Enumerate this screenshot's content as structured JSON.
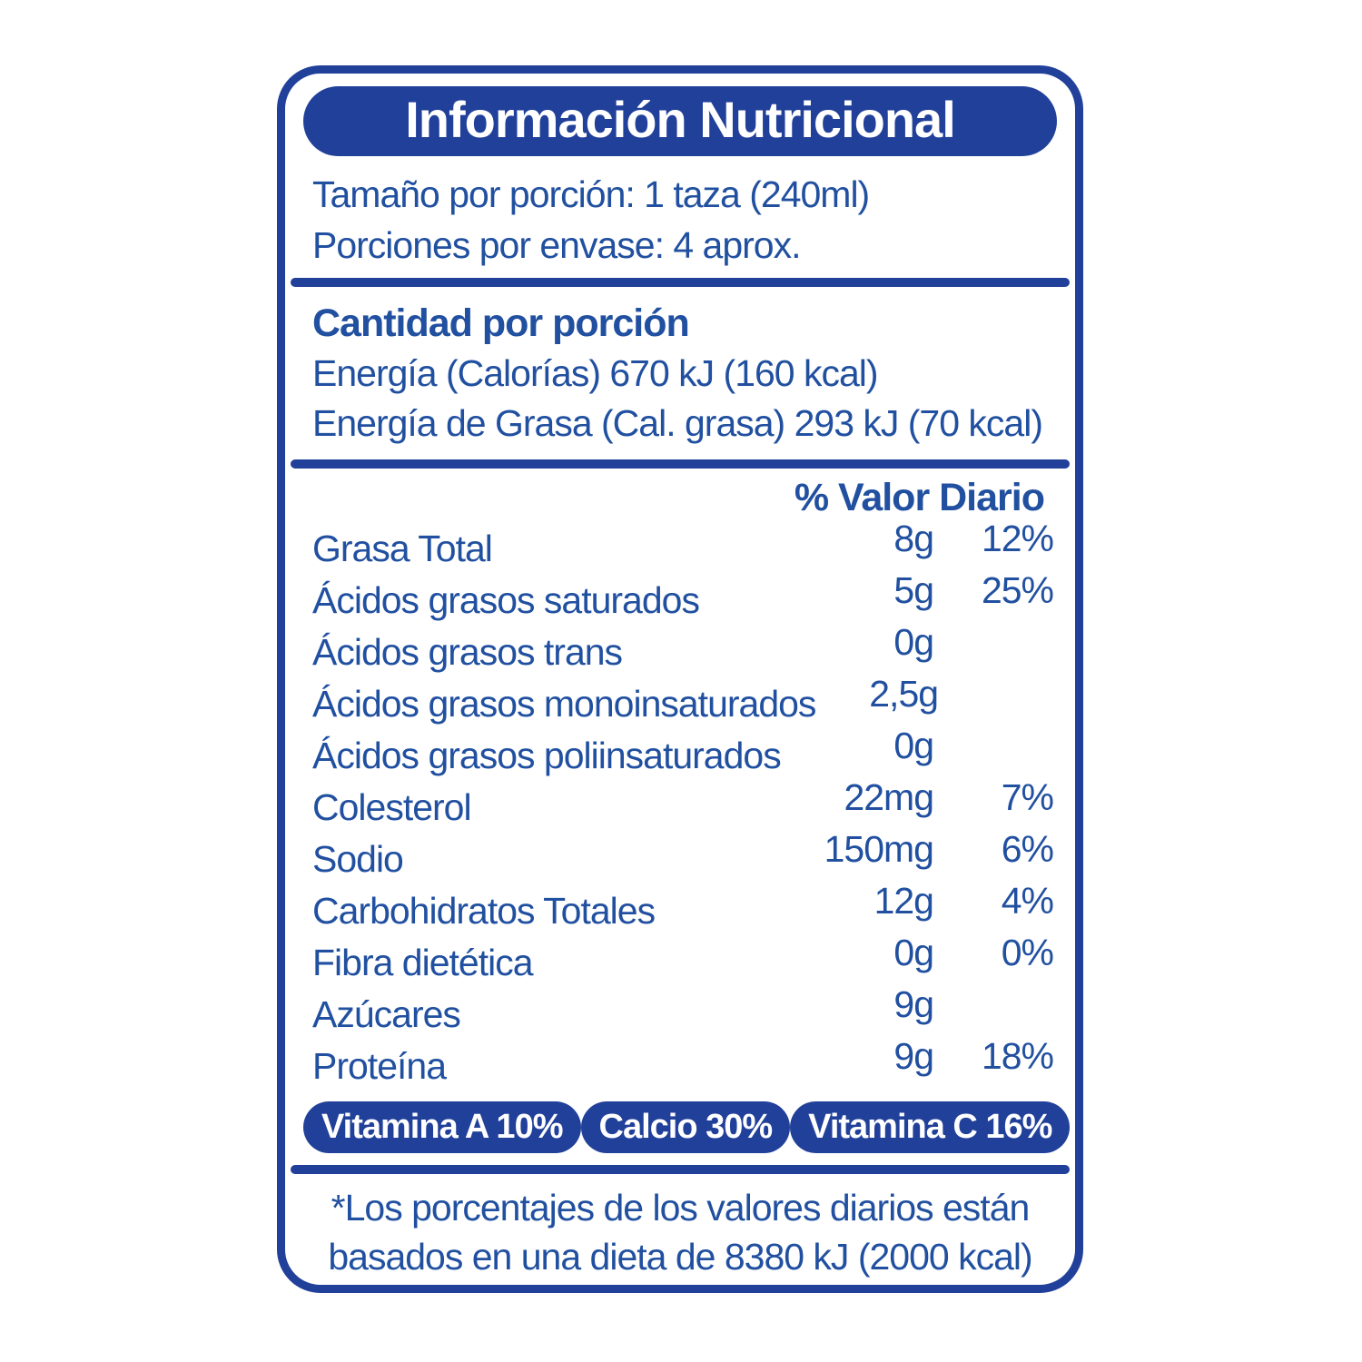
{
  "label": {
    "title": "Información Nutricional",
    "serving": {
      "size": "Tamaño por porción: 1 taza (240ml)",
      "per_container": "Porciones por envase: 4 aprox."
    },
    "amount_section": {
      "heading": "Cantidad por porción",
      "energy": "Energía (Calorías) 670 kJ (160 kcal)",
      "energy_fat": "Energía de Grasa (Cal. grasa) 293 kJ (70 kcal)"
    },
    "daily_value_header": "% Valor Diario",
    "nutrients": [
      {
        "name": "Grasa Total",
        "amount": "8g",
        "dv": "12%"
      },
      {
        "name": "Ácidos grasos saturados",
        "amount": "5g",
        "dv": "25%"
      },
      {
        "name": "Ácidos grasos trans",
        "amount": "0g",
        "dv": ""
      },
      {
        "name": "Ácidos grasos monoinsaturados",
        "amount": "2,5g",
        "dv": ""
      },
      {
        "name": "Ácidos grasos poliinsaturados",
        "amount": "0g",
        "dv": ""
      },
      {
        "name": "Colesterol",
        "amount": "22mg",
        "dv": "7%"
      },
      {
        "name": "Sodio",
        "amount": "150mg",
        "dv": "6%"
      },
      {
        "name": "Carbohidratos Totales",
        "amount": "12g",
        "dv": "4%"
      },
      {
        "name": "Fibra dietética",
        "amount": "0g",
        "dv": "0%"
      },
      {
        "name": "Azúcares",
        "amount": "9g",
        "dv": ""
      },
      {
        "name": "Proteína",
        "amount": "9g",
        "dv": "18%"
      }
    ],
    "vitamin_pills": [
      {
        "label": "Vitamina A 10%"
      },
      {
        "label": "Calcio 30%"
      },
      {
        "label": "Vitamina C 16%"
      }
    ],
    "footnote": {
      "line1": "*Los porcentajes de los valores diarios están",
      "line2": "basados en una dieta de 8380 kJ (2000 kcal)"
    },
    "colors": {
      "accent": "#21409A",
      "text": "#2150A0",
      "background": "#FFFFFF",
      "title_text": "#FFFFFF"
    }
  }
}
